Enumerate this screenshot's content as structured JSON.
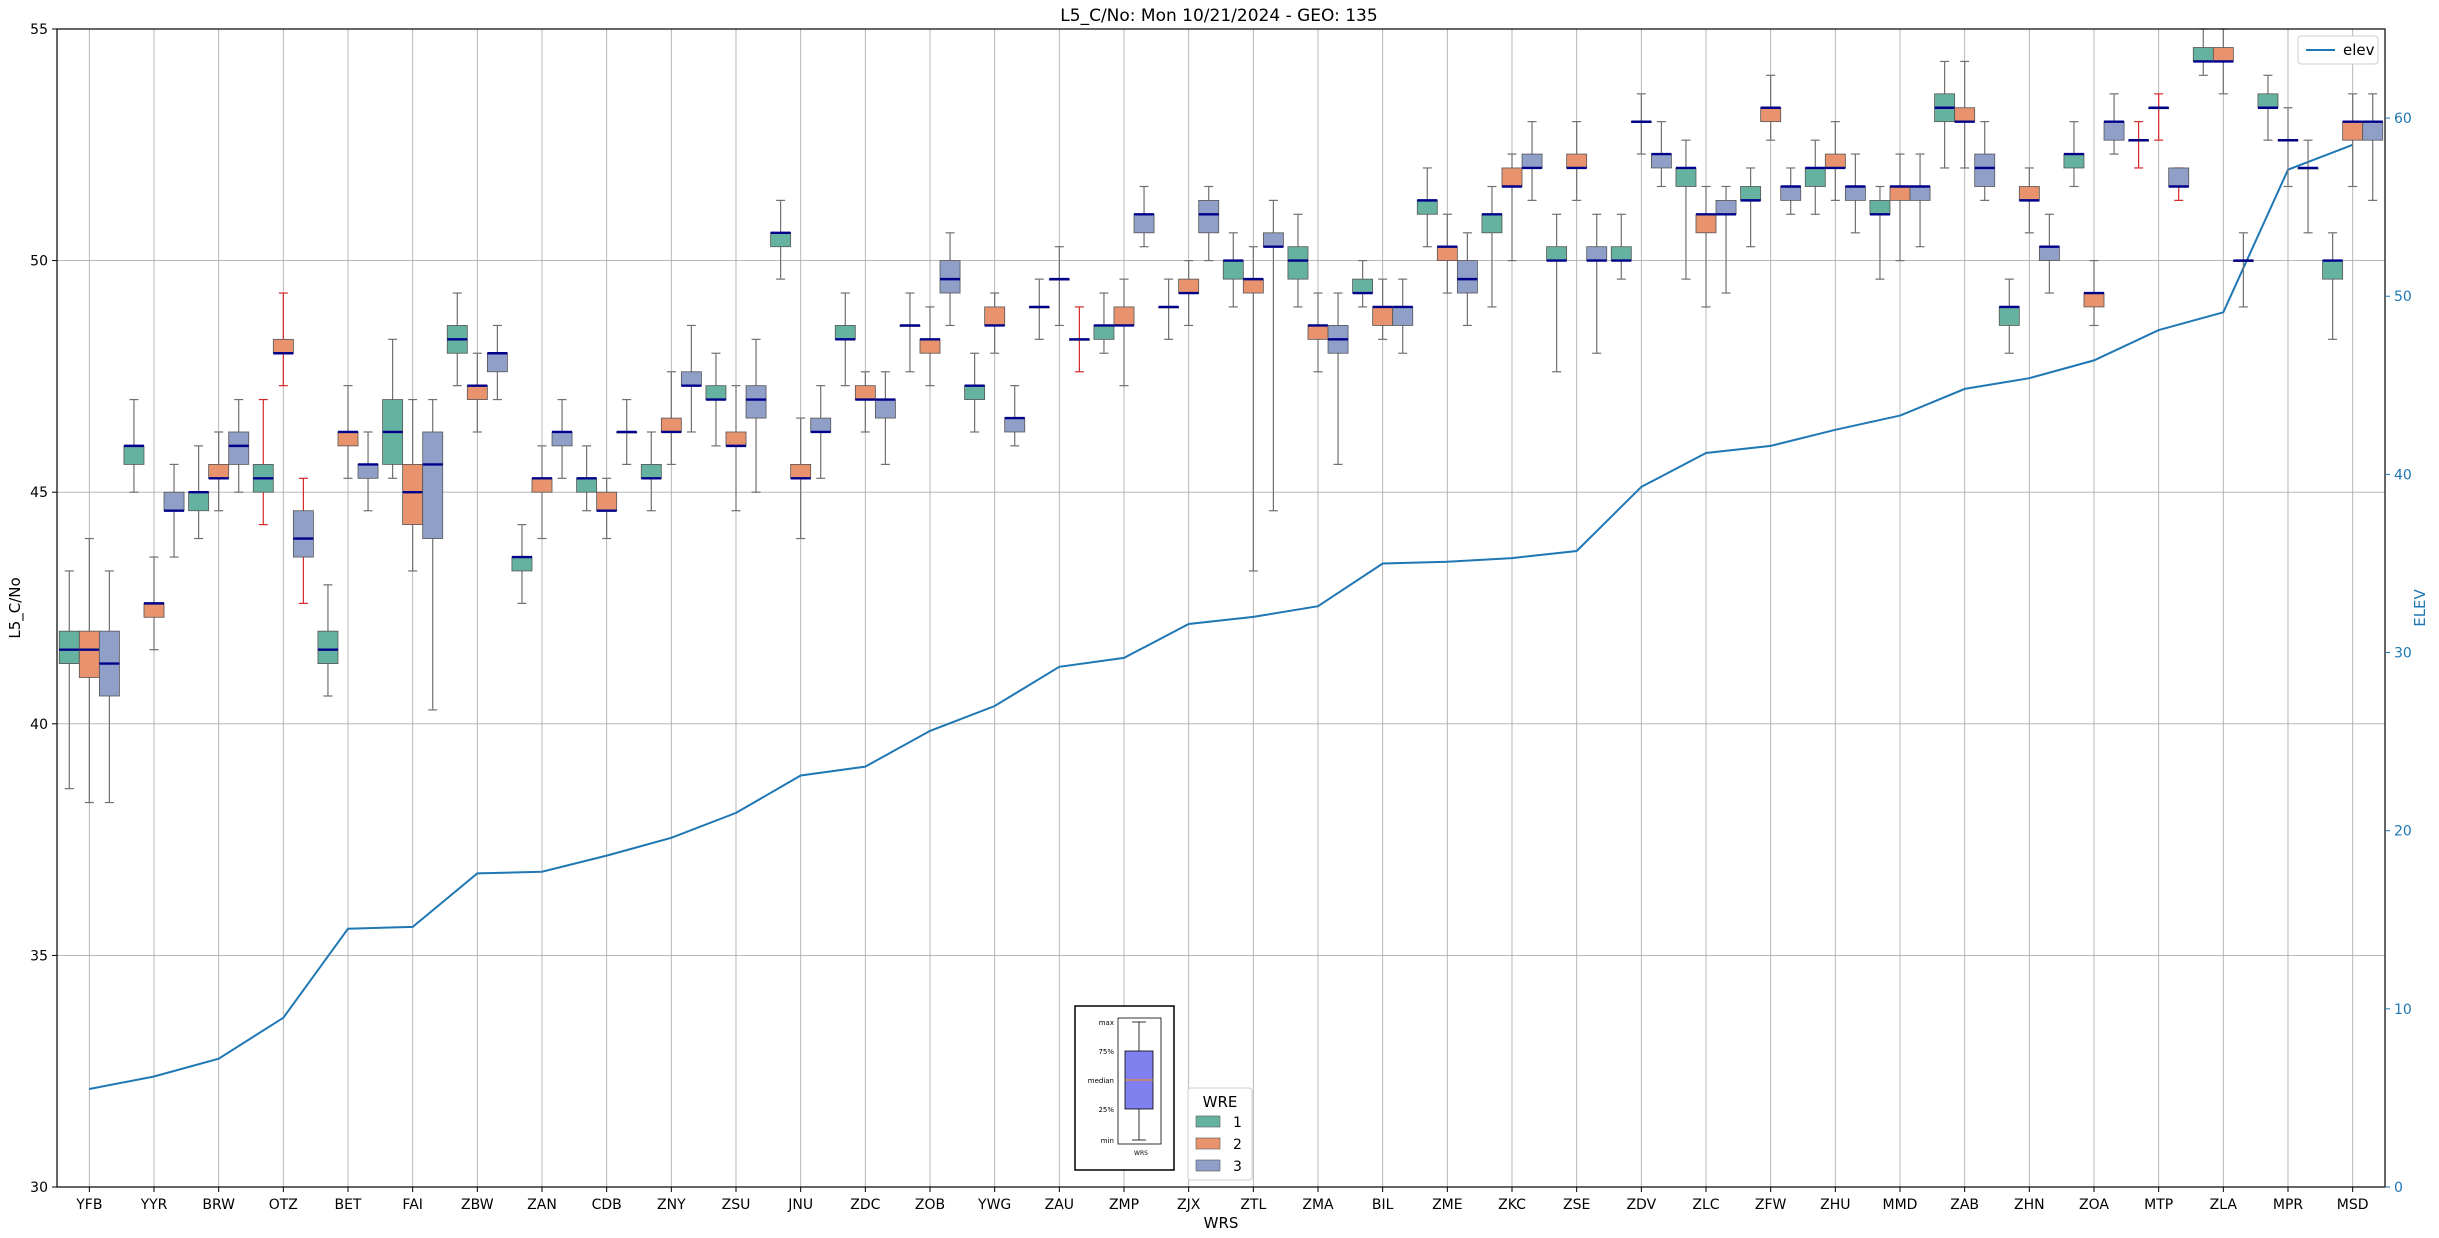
{
  "chart_data": {
    "type": "box",
    "title": "L5_C/No: Mon 10/21/2024 - GEO: 135",
    "xlabel": "WRS",
    "ylabel": "L5_C/No",
    "y2label": "ELEV",
    "ylim": [
      30,
      55
    ],
    "y2lim": [
      0,
      65
    ],
    "yticks": [
      30,
      35,
      40,
      45,
      50,
      55
    ],
    "y2ticks": [
      0,
      10,
      20,
      30,
      40,
      50,
      60
    ],
    "grid": true,
    "categories": [
      "YFB",
      "YYR",
      "BRW",
      "OTZ",
      "BET",
      "FAI",
      "ZBW",
      "ZAN",
      "CDB",
      "ZNY",
      "ZSU",
      "JNU",
      "ZDC",
      "ZOB",
      "YWG",
      "ZAU",
      "ZMP",
      "ZJX",
      "ZTL",
      "ZMA",
      "BIL",
      "ZME",
      "ZKC",
      "ZSE",
      "ZDV",
      "ZLC",
      "ZFW",
      "ZHU",
      "MMD",
      "ZAB",
      "ZHN",
      "ZOA",
      "MTP",
      "ZLA",
      "MPR",
      "MSD"
    ],
    "wre_colors": {
      "1": "#66b2a0",
      "2": "#e8926e",
      "3": "#8f9fc8"
    },
    "outlier_whisker_color": "#d62728",
    "median_color": "#00008b",
    "boxes": [
      {
        "cat": "YFB",
        "wre": 1,
        "min": 38.6,
        "q1": 41.3,
        "med": 41.6,
        "q3": 42.0,
        "max": 43.3
      },
      {
        "cat": "YFB",
        "wre": 2,
        "min": 38.3,
        "q1": 41.0,
        "med": 41.6,
        "q3": 42.0,
        "max": 44.0
      },
      {
        "cat": "YFB",
        "wre": 3,
        "min": 38.3,
        "q1": 40.6,
        "med": 41.3,
        "q3": 42.0,
        "max": 43.3
      },
      {
        "cat": "YYR",
        "wre": 1,
        "min": 45.0,
        "q1": 45.6,
        "med": 46.0,
        "q3": 46.0,
        "max": 47.0
      },
      {
        "cat": "YYR",
        "wre": 2,
        "min": 41.6,
        "q1": 42.3,
        "med": 42.6,
        "q3": 42.6,
        "max": 43.6
      },
      {
        "cat": "YYR",
        "wre": 3,
        "min": 43.6,
        "q1": 44.6,
        "med": 44.6,
        "q3": 45.0,
        "max": 45.6
      },
      {
        "cat": "BRW",
        "wre": 1,
        "min": 44.0,
        "q1": 44.6,
        "med": 45.0,
        "q3": 45.0,
        "max": 46.0
      },
      {
        "cat": "BRW",
        "wre": 2,
        "min": 44.6,
        "q1": 45.3,
        "med": 45.3,
        "q3": 45.6,
        "max": 46.3
      },
      {
        "cat": "BRW",
        "wre": 3,
        "min": 45.0,
        "q1": 45.6,
        "med": 46.0,
        "q3": 46.3,
        "max": 47.0
      },
      {
        "cat": "OTZ",
        "wre": 1,
        "min": 44.3,
        "q1": 45.0,
        "med": 45.3,
        "q3": 45.6,
        "max": 47.0,
        "red": true
      },
      {
        "cat": "OTZ",
        "wre": 2,
        "min": 47.3,
        "q1": 48.0,
        "med": 48.0,
        "q3": 48.3,
        "max": 49.3,
        "red": true
      },
      {
        "cat": "OTZ",
        "wre": 3,
        "min": 42.6,
        "q1": 43.6,
        "med": 44.0,
        "q3": 44.6,
        "max": 45.3,
        "red": true
      },
      {
        "cat": "BET",
        "wre": 1,
        "min": 40.6,
        "q1": 41.3,
        "med": 41.6,
        "q3": 42.0,
        "max": 43.0
      },
      {
        "cat": "BET",
        "wre": 2,
        "min": 45.3,
        "q1": 46.0,
        "med": 46.3,
        "q3": 46.3,
        "max": 47.3
      },
      {
        "cat": "BET",
        "wre": 3,
        "min": 44.6,
        "q1": 45.3,
        "med": 45.6,
        "q3": 45.6,
        "max": 46.3
      },
      {
        "cat": "FAI",
        "wre": 1,
        "min": 45.3,
        "q1": 45.6,
        "med": 46.3,
        "q3": 47.0,
        "max": 48.3
      },
      {
        "cat": "FAI",
        "wre": 2,
        "min": 43.3,
        "q1": 44.3,
        "med": 45.0,
        "q3": 45.6,
        "max": 47.0
      },
      {
        "cat": "FAI",
        "wre": 3,
        "min": 40.3,
        "q1": 44.0,
        "med": 45.6,
        "q3": 46.3,
        "max": 47.0
      },
      {
        "cat": "ZBW",
        "wre": 1,
        "min": 47.3,
        "q1": 48.0,
        "med": 48.3,
        "q3": 48.6,
        "max": 49.3
      },
      {
        "cat": "ZBW",
        "wre": 2,
        "min": 46.3,
        "q1": 47.0,
        "med": 47.3,
        "q3": 47.3,
        "max": 48.0
      },
      {
        "cat": "ZBW",
        "wre": 3,
        "min": 47.0,
        "q1": 47.6,
        "med": 48.0,
        "q3": 48.0,
        "max": 48.6
      },
      {
        "cat": "ZAN",
        "wre": 1,
        "min": 42.6,
        "q1": 43.3,
        "med": 43.6,
        "q3": 43.6,
        "max": 44.3
      },
      {
        "cat": "ZAN",
        "wre": 2,
        "min": 44.0,
        "q1": 45.0,
        "med": 45.3,
        "q3": 45.3,
        "max": 46.0
      },
      {
        "cat": "ZAN",
        "wre": 3,
        "min": 45.3,
        "q1": 46.0,
        "med": 46.3,
        "q3": 46.3,
        "max": 47.0
      },
      {
        "cat": "CDB",
        "wre": 1,
        "min": 44.6,
        "q1": 45.0,
        "med": 45.3,
        "q3": 45.3,
        "max": 46.0
      },
      {
        "cat": "CDB",
        "wre": 2,
        "min": 44.0,
        "q1": 44.6,
        "med": 44.6,
        "q3": 45.0,
        "max": 45.3
      },
      {
        "cat": "CDB",
        "wre": 3,
        "min": 45.6,
        "q1": 46.3,
        "med": 46.3,
        "q3": 46.3,
        "max": 47.0
      },
      {
        "cat": "ZNY",
        "wre": 1,
        "min": 44.6,
        "q1": 45.3,
        "med": 45.3,
        "q3": 45.6,
        "max": 46.3
      },
      {
        "cat": "ZNY",
        "wre": 2,
        "min": 45.6,
        "q1": 46.3,
        "med": 46.3,
        "q3": 46.6,
        "max": 47.6
      },
      {
        "cat": "ZNY",
        "wre": 3,
        "min": 46.3,
        "q1": 47.3,
        "med": 47.3,
        "q3": 47.6,
        "max": 48.6
      },
      {
        "cat": "ZSU",
        "wre": 1,
        "min": 46.0,
        "q1": 47.0,
        "med": 47.0,
        "q3": 47.3,
        "max": 48.0
      },
      {
        "cat": "ZSU",
        "wre": 2,
        "min": 44.6,
        "q1": 46.0,
        "med": 46.0,
        "q3": 46.3,
        "max": 47.3
      },
      {
        "cat": "ZSU",
        "wre": 3,
        "min": 45.0,
        "q1": 46.6,
        "med": 47.0,
        "q3": 47.3,
        "max": 48.3
      },
      {
        "cat": "JNU",
        "wre": 1,
        "min": 49.6,
        "q1": 50.3,
        "med": 50.6,
        "q3": 50.6,
        "max": 51.3
      },
      {
        "cat": "JNU",
        "wre": 2,
        "min": 44.0,
        "q1": 45.3,
        "med": 45.3,
        "q3": 45.6,
        "max": 46.6
      },
      {
        "cat": "JNU",
        "wre": 3,
        "min": 45.3,
        "q1": 46.3,
        "med": 46.3,
        "q3": 46.6,
        "max": 47.3
      },
      {
        "cat": "ZDC",
        "wre": 1,
        "min": 47.3,
        "q1": 48.3,
        "med": 48.3,
        "q3": 48.6,
        "max": 49.3
      },
      {
        "cat": "ZDC",
        "wre": 2,
        "min": 46.3,
        "q1": 47.0,
        "med": 47.0,
        "q3": 47.3,
        "max": 47.6
      },
      {
        "cat": "ZDC",
        "wre": 3,
        "min": 45.6,
        "q1": 46.6,
        "med": 47.0,
        "q3": 47.0,
        "max": 47.6
      },
      {
        "cat": "ZOB",
        "wre": 1,
        "min": 47.6,
        "q1": 48.6,
        "med": 48.6,
        "q3": 48.6,
        "max": 49.3
      },
      {
        "cat": "ZOB",
        "wre": 2,
        "min": 47.3,
        "q1": 48.0,
        "med": 48.3,
        "q3": 48.3,
        "max": 49.0
      },
      {
        "cat": "ZOB",
        "wre": 3,
        "min": 48.6,
        "q1": 49.3,
        "med": 49.6,
        "q3": 50.0,
        "max": 50.6
      },
      {
        "cat": "YWG",
        "wre": 1,
        "min": 46.3,
        "q1": 47.0,
        "med": 47.3,
        "q3": 47.3,
        "max": 48.0
      },
      {
        "cat": "YWG",
        "wre": 2,
        "min": 48.0,
        "q1": 48.6,
        "med": 48.6,
        "q3": 49.0,
        "max": 49.3
      },
      {
        "cat": "YWG",
        "wre": 3,
        "min": 46.0,
        "q1": 46.3,
        "med": 46.6,
        "q3": 46.6,
        "max": 47.3
      },
      {
        "cat": "ZAU",
        "wre": 1,
        "min": 48.3,
        "q1": 49.0,
        "med": 49.0,
        "q3": 49.0,
        "max": 49.6
      },
      {
        "cat": "ZAU",
        "wre": 2,
        "min": 48.6,
        "q1": 49.6,
        "med": 49.6,
        "q3": 49.6,
        "max": 50.3
      },
      {
        "cat": "ZAU",
        "wre": 3,
        "min": 47.6,
        "q1": 48.3,
        "med": 48.3,
        "q3": 48.3,
        "max": 49.0,
        "red": true
      },
      {
        "cat": "ZMP",
        "wre": 1,
        "min": 48.0,
        "q1": 48.3,
        "med": 48.6,
        "q3": 48.6,
        "max": 49.3
      },
      {
        "cat": "ZMP",
        "wre": 2,
        "min": 47.3,
        "q1": 48.6,
        "med": 48.6,
        "q3": 49.0,
        "max": 49.6
      },
      {
        "cat": "ZMP",
        "wre": 3,
        "min": 50.3,
        "q1": 50.6,
        "med": 51.0,
        "q3": 51.0,
        "max": 51.6
      },
      {
        "cat": "ZJX",
        "wre": 1,
        "min": 48.3,
        "q1": 49.0,
        "med": 49.0,
        "q3": 49.0,
        "max": 49.6
      },
      {
        "cat": "ZJX",
        "wre": 2,
        "min": 48.6,
        "q1": 49.3,
        "med": 49.3,
        "q3": 49.6,
        "max": 50.0
      },
      {
        "cat": "ZJX",
        "wre": 3,
        "min": 50.0,
        "q1": 50.6,
        "med": 51.0,
        "q3": 51.3,
        "max": 51.6
      },
      {
        "cat": "ZTL",
        "wre": 1,
        "min": 49.0,
        "q1": 49.6,
        "med": 50.0,
        "q3": 50.0,
        "max": 50.6
      },
      {
        "cat": "ZTL",
        "wre": 2,
        "min": 43.3,
        "q1": 49.3,
        "med": 49.6,
        "q3": 49.6,
        "max": 50.3
      },
      {
        "cat": "ZTL",
        "wre": 3,
        "min": 44.6,
        "q1": 50.3,
        "med": 50.3,
        "q3": 50.6,
        "max": 51.3
      },
      {
        "cat": "ZMA",
        "wre": 1,
        "min": 49.0,
        "q1": 49.6,
        "med": 50.0,
        "q3": 50.3,
        "max": 51.0
      },
      {
        "cat": "ZMA",
        "wre": 2,
        "min": 47.6,
        "q1": 48.3,
        "med": 48.6,
        "q3": 48.6,
        "max": 49.3
      },
      {
        "cat": "ZMA",
        "wre": 3,
        "min": 45.6,
        "q1": 48.0,
        "med": 48.3,
        "q3": 48.6,
        "max": 49.3
      },
      {
        "cat": "BIL",
        "wre": 1,
        "min": 49.0,
        "q1": 49.3,
        "med": 49.3,
        "q3": 49.6,
        "max": 50.0
      },
      {
        "cat": "BIL",
        "wre": 2,
        "min": 48.3,
        "q1": 48.6,
        "med": 49.0,
        "q3": 49.0,
        "max": 49.6
      },
      {
        "cat": "BIL",
        "wre": 3,
        "min": 48.0,
        "q1": 48.6,
        "med": 49.0,
        "q3": 49.0,
        "max": 49.6
      },
      {
        "cat": "ZME",
        "wre": 1,
        "min": 50.3,
        "q1": 51.0,
        "med": 51.3,
        "q3": 51.3,
        "max": 52.0
      },
      {
        "cat": "ZME",
        "wre": 2,
        "min": 49.3,
        "q1": 50.0,
        "med": 50.3,
        "q3": 50.3,
        "max": 51.0
      },
      {
        "cat": "ZME",
        "wre": 3,
        "min": 48.6,
        "q1": 49.3,
        "med": 49.6,
        "q3": 50.0,
        "max": 50.6
      },
      {
        "cat": "ZKC",
        "wre": 1,
        "min": 49.0,
        "q1": 50.6,
        "med": 51.0,
        "q3": 51.0,
        "max": 51.6
      },
      {
        "cat": "ZKC",
        "wre": 2,
        "min": 50.0,
        "q1": 51.6,
        "med": 51.6,
        "q3": 52.0,
        "max": 52.3
      },
      {
        "cat": "ZKC",
        "wre": 3,
        "min": 51.3,
        "q1": 52.0,
        "med": 52.0,
        "q3": 52.3,
        "max": 53.0
      },
      {
        "cat": "ZSE",
        "wre": 1,
        "min": 47.6,
        "q1": 50.0,
        "med": 50.0,
        "q3": 50.3,
        "max": 51.0
      },
      {
        "cat": "ZSE",
        "wre": 2,
        "min": 51.3,
        "q1": 52.0,
        "med": 52.0,
        "q3": 52.3,
        "max": 53.0
      },
      {
        "cat": "ZSE",
        "wre": 3,
        "min": 48.0,
        "q1": 50.0,
        "med": 50.0,
        "q3": 50.3,
        "max": 51.0
      },
      {
        "cat": "ZDV",
        "wre": 1,
        "min": 49.6,
        "q1": 50.0,
        "med": 50.0,
        "q3": 50.3,
        "max": 51.0
      },
      {
        "cat": "ZDV",
        "wre": 2,
        "min": 52.3,
        "q1": 53.0,
        "med": 53.0,
        "q3": 53.0,
        "max": 53.6
      },
      {
        "cat": "ZDV",
        "wre": 3,
        "min": 51.6,
        "q1": 52.0,
        "med": 52.3,
        "q3": 52.3,
        "max": 53.0
      },
      {
        "cat": "ZLC",
        "wre": 1,
        "min": 49.6,
        "q1": 51.6,
        "med": 52.0,
        "q3": 52.0,
        "max": 52.6
      },
      {
        "cat": "ZLC",
        "wre": 2,
        "min": 49.0,
        "q1": 50.6,
        "med": 51.0,
        "q3": 51.0,
        "max": 51.6
      },
      {
        "cat": "ZLC",
        "wre": 3,
        "min": 49.3,
        "q1": 51.0,
        "med": 51.0,
        "q3": 51.3,
        "max": 51.6
      },
      {
        "cat": "ZFW",
        "wre": 1,
        "min": 50.3,
        "q1": 51.3,
        "med": 51.3,
        "q3": 51.6,
        "max": 52.0
      },
      {
        "cat": "ZFW",
        "wre": 2,
        "min": 52.6,
        "q1": 53.0,
        "med": 53.3,
        "q3": 53.3,
        "max": 54.0
      },
      {
        "cat": "ZFW",
        "wre": 3,
        "min": 51.0,
        "q1": 51.3,
        "med": 51.6,
        "q3": 51.6,
        "max": 52.0
      },
      {
        "cat": "ZHU",
        "wre": 1,
        "min": 51.0,
        "q1": 51.6,
        "med": 52.0,
        "q3": 52.0,
        "max": 52.6
      },
      {
        "cat": "ZHU",
        "wre": 2,
        "min": 51.3,
        "q1": 52.0,
        "med": 52.0,
        "q3": 52.3,
        "max": 53.0
      },
      {
        "cat": "ZHU",
        "wre": 3,
        "min": 50.6,
        "q1": 51.3,
        "med": 51.6,
        "q3": 51.6,
        "max": 52.3
      },
      {
        "cat": "MMD",
        "wre": 1,
        "min": 49.6,
        "q1": 51.0,
        "med": 51.0,
        "q3": 51.3,
        "max": 51.6
      },
      {
        "cat": "MMD",
        "wre": 2,
        "min": 50.0,
        "q1": 51.3,
        "med": 51.6,
        "q3": 51.6,
        "max": 52.3
      },
      {
        "cat": "MMD",
        "wre": 3,
        "min": 50.3,
        "q1": 51.3,
        "med": 51.6,
        "q3": 51.6,
        "max": 52.3
      },
      {
        "cat": "ZAB",
        "wre": 1,
        "min": 52.0,
        "q1": 53.0,
        "med": 53.3,
        "q3": 53.6,
        "max": 54.3
      },
      {
        "cat": "ZAB",
        "wre": 2,
        "min": 52.0,
        "q1": 53.0,
        "med": 53.0,
        "q3": 53.3,
        "max": 54.3
      },
      {
        "cat": "ZAB",
        "wre": 3,
        "min": 51.3,
        "q1": 51.6,
        "med": 52.0,
        "q3": 52.3,
        "max": 53.0
      },
      {
        "cat": "ZHN",
        "wre": 1,
        "min": 48.0,
        "q1": 48.6,
        "med": 49.0,
        "q3": 49.0,
        "max": 49.6
      },
      {
        "cat": "ZHN",
        "wre": 2,
        "min": 50.6,
        "q1": 51.3,
        "med": 51.3,
        "q3": 51.6,
        "max": 52.0
      },
      {
        "cat": "ZHN",
        "wre": 3,
        "min": 49.3,
        "q1": 50.0,
        "med": 50.3,
        "q3": 50.3,
        "max": 51.0
      },
      {
        "cat": "ZOA",
        "wre": 1,
        "min": 51.6,
        "q1": 52.0,
        "med": 52.3,
        "q3": 52.3,
        "max": 53.0
      },
      {
        "cat": "ZOA",
        "wre": 2,
        "min": 48.6,
        "q1": 49.0,
        "med": 49.3,
        "q3": 49.3,
        "max": 50.0
      },
      {
        "cat": "ZOA",
        "wre": 3,
        "min": 52.3,
        "q1": 52.6,
        "med": 53.0,
        "q3": 53.0,
        "max": 53.6
      },
      {
        "cat": "MTP",
        "wre": 1,
        "min": 52.0,
        "q1": 52.6,
        "med": 52.6,
        "q3": 52.6,
        "max": 53.0,
        "red": true
      },
      {
        "cat": "MTP",
        "wre": 2,
        "min": 52.6,
        "q1": 53.3,
        "med": 53.3,
        "q3": 53.3,
        "max": 53.6,
        "red": true
      },
      {
        "cat": "MTP",
        "wre": 3,
        "min": 51.3,
        "q1": 51.6,
        "med": 51.6,
        "q3": 52.0,
        "max": 52.0,
        "red": true
      },
      {
        "cat": "ZLA",
        "wre": 1,
        "min": 54.0,
        "q1": 54.3,
        "med": 54.3,
        "q3": 54.6,
        "max": 55.0
      },
      {
        "cat": "ZLA",
        "wre": 2,
        "min": 53.6,
        "q1": 54.3,
        "med": 54.3,
        "q3": 54.6,
        "max": 55.0
      },
      {
        "cat": "ZLA",
        "wre": 3,
        "min": 49.0,
        "q1": 50.0,
        "med": 50.0,
        "q3": 50.0,
        "max": 50.6
      },
      {
        "cat": "MPR",
        "wre": 1,
        "min": 52.6,
        "q1": 53.3,
        "med": 53.3,
        "q3": 53.6,
        "max": 54.0
      },
      {
        "cat": "MPR",
        "wre": 2,
        "min": 51.6,
        "q1": 52.6,
        "med": 52.6,
        "q3": 52.6,
        "max": 53.3
      },
      {
        "cat": "MPR",
        "wre": 3,
        "min": 50.6,
        "q1": 52.0,
        "med": 52.0,
        "q3": 52.0,
        "max": 52.6
      },
      {
        "cat": "MSD",
        "wre": 1,
        "min": 48.3,
        "q1": 49.6,
        "med": 50.0,
        "q3": 50.0,
        "max": 50.6
      },
      {
        "cat": "MSD",
        "wre": 2,
        "min": 51.6,
        "q1": 52.6,
        "med": 53.0,
        "q3": 53.0,
        "max": 53.6
      },
      {
        "cat": "MSD",
        "wre": 3,
        "min": 51.3,
        "q1": 52.6,
        "med": 53.0,
        "q3": 53.0,
        "max": 53.6
      }
    ],
    "elev_series": {
      "name": "elev",
      "color": "#1f77b4",
      "values": [
        5.5,
        6.2,
        7.2,
        9.5,
        14.5,
        14.6,
        17.6,
        17.7,
        18.6,
        19.6,
        21.0,
        23.1,
        23.6,
        25.6,
        27.0,
        29.2,
        29.7,
        31.6,
        32.0,
        32.6,
        35.0,
        35.1,
        35.3,
        35.7,
        39.3,
        41.2,
        41.6,
        42.5,
        43.3,
        44.8,
        45.4,
        46.4,
        48.1,
        49.1,
        57.1,
        58.5
      ]
    },
    "legend_elev": {
      "label": "elev",
      "placement": "top-right"
    },
    "legend_wre": {
      "title": "WRE",
      "items": [
        "1",
        "2",
        "3"
      ],
      "placement": "bottom-center"
    },
    "key_inset": {
      "labels": [
        "max",
        "75%",
        "median",
        "25%",
        "min"
      ],
      "xlabel": "WRS"
    }
  }
}
